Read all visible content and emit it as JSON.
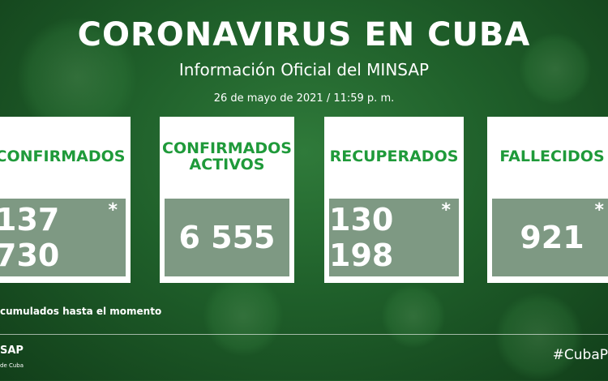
{
  "header": {
    "title": "CORONAVIRUS EN CUBA",
    "subtitle": "Información Oficial del MINSAP",
    "date": "26 de mayo de 2021 / 11:59 p. m."
  },
  "cards": [
    {
      "label": "CONFIRMADOS",
      "value": "137 730",
      "marker": "*"
    },
    {
      "label": "CONFIRMADOS ACTIVOS",
      "value": "6 555",
      "marker": ""
    },
    {
      "label": "RECUPERADOS",
      "value": "130 198",
      "marker": "*"
    },
    {
      "label": "FALLECIDOS",
      "value": "921",
      "marker": "*"
    }
  ],
  "footnote": "cumulados hasta el momento",
  "footer": {
    "logo_text": "SAP",
    "logo_sub": "de Cuba",
    "hashtag": "#CubaP"
  },
  "colors": {
    "accent_green": "#1f9a3a",
    "background": "#1f5f2a"
  }
}
